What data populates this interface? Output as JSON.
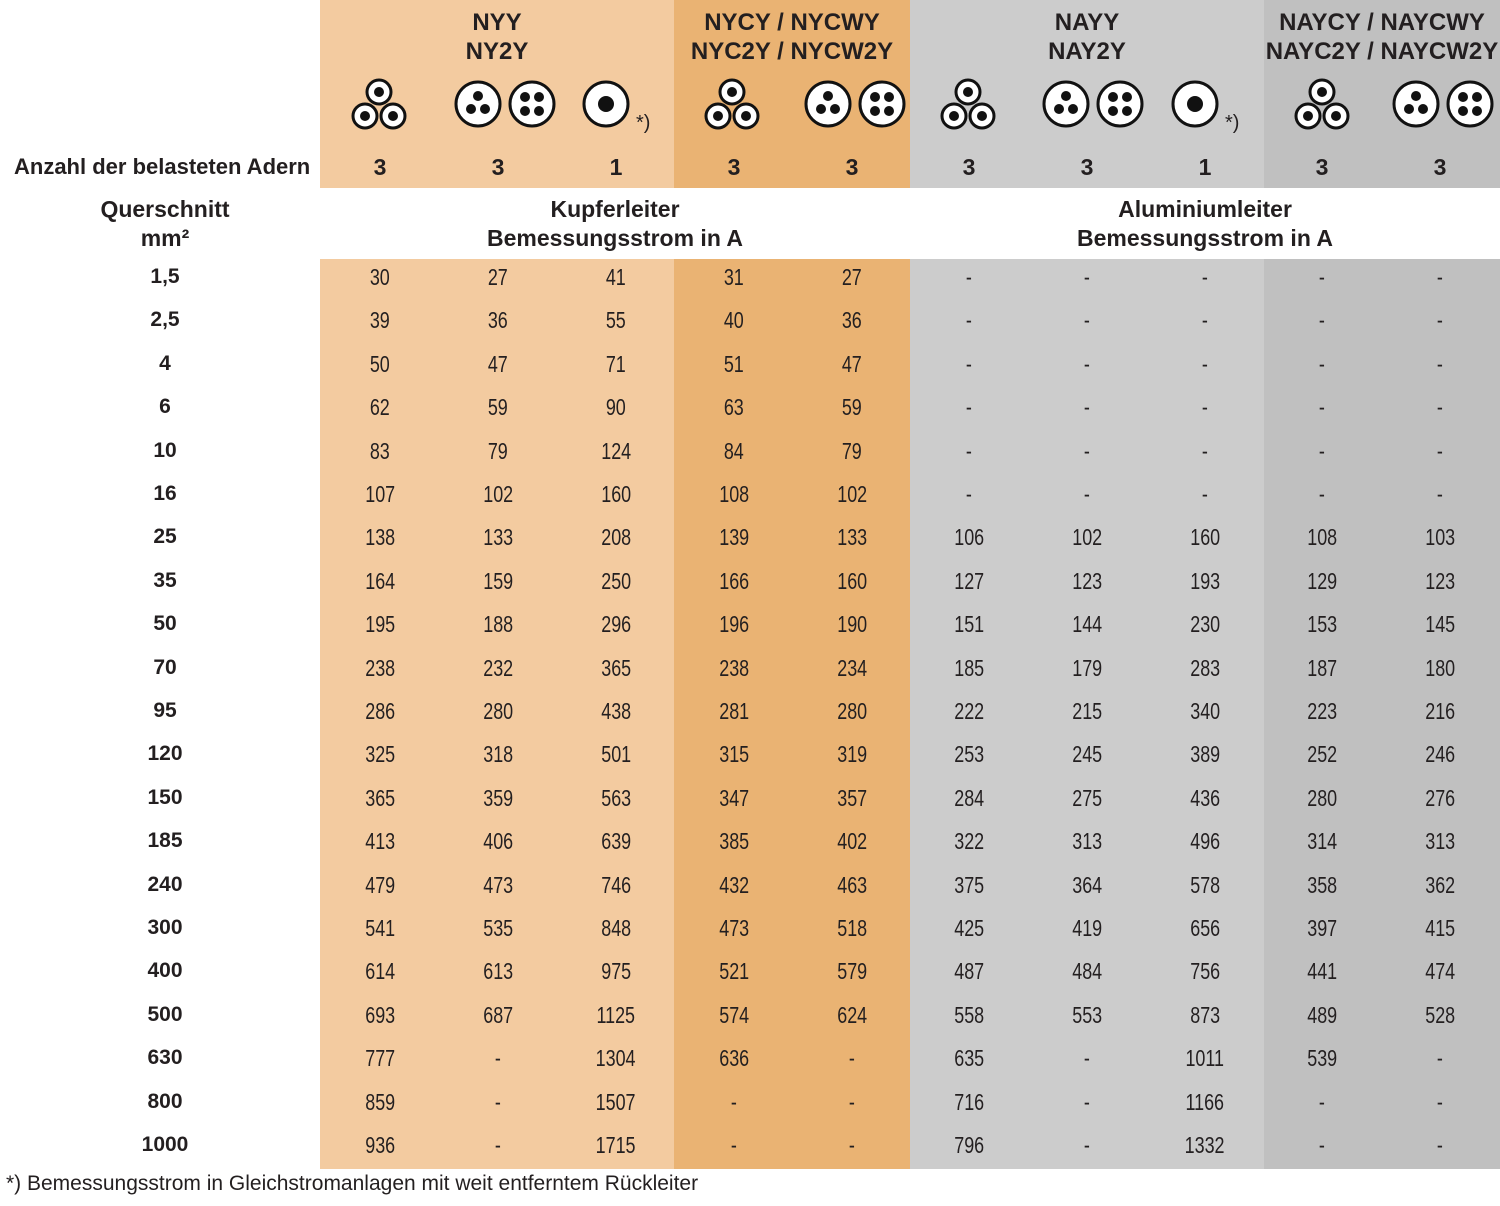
{
  "colors": {
    "copper_primary": "#f3cba0",
    "copper_secondary": "#eab373",
    "aluminium_primary": "#cccccc",
    "aluminium_secondary": "#c0c0c0",
    "text": "#231f20"
  },
  "header": {
    "groups": [
      {
        "id": "nyy",
        "line1": "NYY",
        "line2": "NY2Y"
      },
      {
        "id": "nycy",
        "line1": "NYCY / NYCWY",
        "line2": "NYC2Y / NYCW2Y"
      },
      {
        "id": "nayy",
        "line1": "NAYY",
        "line2": "NAY2Y"
      },
      {
        "id": "naycy",
        "line1": "NAYCY / NAYCWY",
        "line2": "NAYC2Y / NAYCW2Y"
      }
    ],
    "icons": [
      {
        "name": "three-single-core-cables-icon",
        "footnote": ""
      },
      {
        "name": "multi-core-cable-3-4-icon",
        "footnote": ""
      },
      {
        "name": "single-core-cable-icon",
        "footnote": "*)"
      },
      {
        "name": "three-single-core-cables-icon",
        "footnote": ""
      },
      {
        "name": "multi-core-cable-3-4-icon",
        "footnote": ""
      },
      {
        "name": "three-single-core-cables-icon",
        "footnote": ""
      },
      {
        "name": "multi-core-cable-3-4-icon",
        "footnote": ""
      },
      {
        "name": "single-core-cable-icon",
        "footnote": "*)"
      },
      {
        "name": "three-single-core-cables-icon",
        "footnote": ""
      },
      {
        "name": "multi-core-cable-3-4-icon",
        "footnote": ""
      }
    ],
    "loaded_cores_label": "Anzahl der belasteten Adern",
    "loaded_cores": [
      "3",
      "3",
      "1",
      "3",
      "3",
      "3",
      "3",
      "1",
      "3",
      "3"
    ],
    "cross_section_label_1": "Querschnitt",
    "cross_section_label_2": "mm²",
    "copper_head_1": "Kupferleiter",
    "copper_head_2": "Bemessungsstrom in A",
    "aluminium_head_1": "Aluminiumleiter",
    "aluminium_head_2": "Bemessungsstrom in A"
  },
  "rows": [
    {
      "qs": "1,5",
      "v": [
        "30",
        "27",
        "41",
        "31",
        "27",
        "-",
        "-",
        "-",
        "-",
        "-"
      ]
    },
    {
      "qs": "2,5",
      "v": [
        "39",
        "36",
        "55",
        "40",
        "36",
        "-",
        "-",
        "-",
        "-",
        "-"
      ]
    },
    {
      "qs": "4",
      "v": [
        "50",
        "47",
        "71",
        "51",
        "47",
        "-",
        "-",
        "-",
        "-",
        "-"
      ]
    },
    {
      "qs": "6",
      "v": [
        "62",
        "59",
        "90",
        "63",
        "59",
        "-",
        "-",
        "-",
        "-",
        "-"
      ]
    },
    {
      "qs": "10",
      "v": [
        "83",
        "79",
        "124",
        "84",
        "79",
        "-",
        "-",
        "-",
        "-",
        "-"
      ]
    },
    {
      "qs": "16",
      "v": [
        "107",
        "102",
        "160",
        "108",
        "102",
        "-",
        "-",
        "-",
        "-",
        "-"
      ]
    },
    {
      "qs": "25",
      "v": [
        "138",
        "133",
        "208",
        "139",
        "133",
        "106",
        "102",
        "160",
        "108",
        "103"
      ]
    },
    {
      "qs": "35",
      "v": [
        "164",
        "159",
        "250",
        "166",
        "160",
        "127",
        "123",
        "193",
        "129",
        "123"
      ]
    },
    {
      "qs": "50",
      "v": [
        "195",
        "188",
        "296",
        "196",
        "190",
        "151",
        "144",
        "230",
        "153",
        "145"
      ]
    },
    {
      "qs": "70",
      "v": [
        "238",
        "232",
        "365",
        "238",
        "234",
        "185",
        "179",
        "283",
        "187",
        "180"
      ]
    },
    {
      "qs": "95",
      "v": [
        "286",
        "280",
        "438",
        "281",
        "280",
        "222",
        "215",
        "340",
        "223",
        "216"
      ]
    },
    {
      "qs": "120",
      "v": [
        "325",
        "318",
        "501",
        "315",
        "319",
        "253",
        "245",
        "389",
        "252",
        "246"
      ]
    },
    {
      "qs": "150",
      "v": [
        "365",
        "359",
        "563",
        "347",
        "357",
        "284",
        "275",
        "436",
        "280",
        "276"
      ]
    },
    {
      "qs": "185",
      "v": [
        "413",
        "406",
        "639",
        "385",
        "402",
        "322",
        "313",
        "496",
        "314",
        "313"
      ]
    },
    {
      "qs": "240",
      "v": [
        "479",
        "473",
        "746",
        "432",
        "463",
        "375",
        "364",
        "578",
        "358",
        "362"
      ]
    },
    {
      "qs": "300",
      "v": [
        "541",
        "535",
        "848",
        "473",
        "518",
        "425",
        "419",
        "656",
        "397",
        "415"
      ]
    },
    {
      "qs": "400",
      "v": [
        "614",
        "613",
        "975",
        "521",
        "579",
        "487",
        "484",
        "756",
        "441",
        "474"
      ]
    },
    {
      "qs": "500",
      "v": [
        "693",
        "687",
        "1125",
        "574",
        "624",
        "558",
        "553",
        "873",
        "489",
        "528"
      ]
    },
    {
      "qs": "630",
      "v": [
        "777",
        "-",
        "1304",
        "636",
        "-",
        "635",
        "-",
        "1011",
        "539",
        "-"
      ]
    },
    {
      "qs": "800",
      "v": [
        "859",
        "-",
        "1507",
        "-",
        "-",
        "716",
        "-",
        "1166",
        "-",
        "-"
      ]
    },
    {
      "qs": "1000",
      "v": [
        "936",
        "-",
        "1715",
        "-",
        "-",
        "796",
        "-",
        "1332",
        "-",
        "-"
      ]
    }
  ],
  "footnote": "*) Bemessungsstrom in Gleichstromanlagen mit weit entferntem Rückleiter"
}
